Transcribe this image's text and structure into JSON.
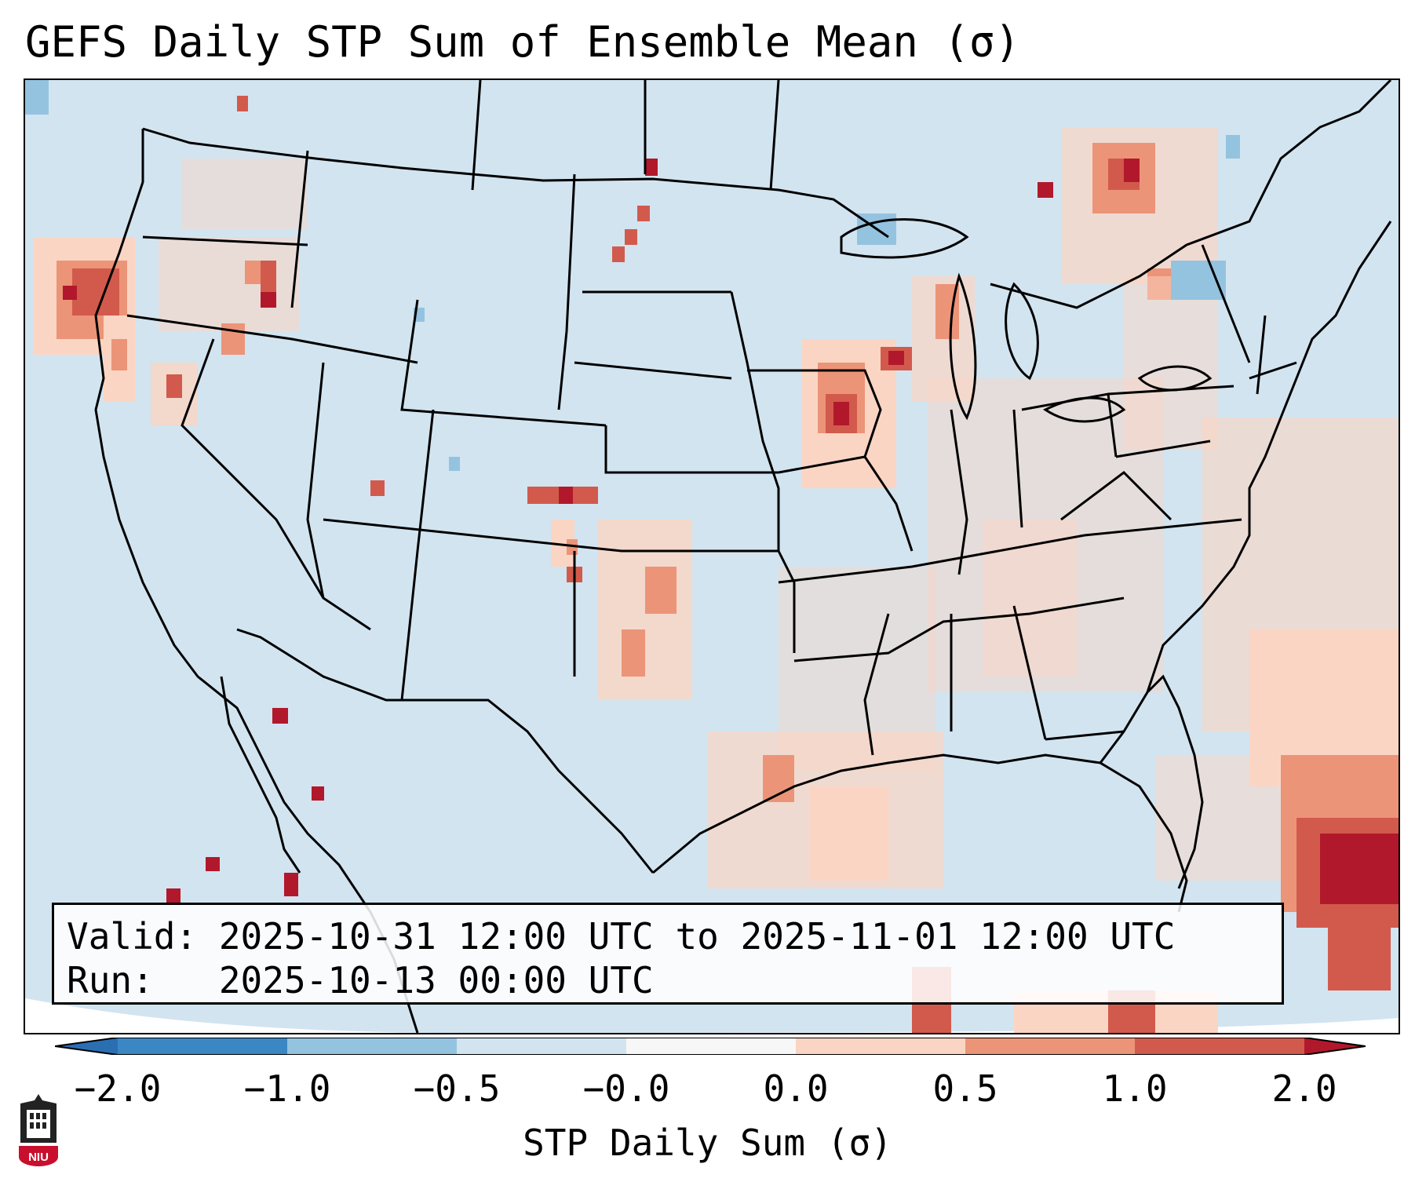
{
  "title": "GEFS Daily STP Sum of Ensemble Mean (σ)",
  "info": {
    "valid_line": "Valid: 2025-10-31 12:00 UTC to 2025-11-01 12:00 UTC",
    "run_line": "Run:   2025-10-13 00:00 UTC"
  },
  "colorbar": {
    "label": "STP Daily Sum (σ)",
    "ticks": [
      "−2.0",
      "−1.0",
      "−0.5",
      "−0.0",
      "0.0",
      "0.5",
      "1.0",
      "2.0"
    ],
    "colors": {
      "under": "#2b6fb3",
      "neg2": "#3b87c4",
      "neg1": "#94c3e0",
      "neg05": "#d2e4f0",
      "neg0": "#f7f7f7",
      "pos0": "#fbd5c3",
      "pos05": "#ec9478",
      "pos1": "#d25a4c",
      "pos2": "#b2182b"
    }
  },
  "map": {
    "background_color": "#d2e4f0",
    "outside_color": "#ffffff",
    "border_color": "#000000"
  },
  "logo": {
    "text": "NIU",
    "color": "#c8102e"
  }
}
